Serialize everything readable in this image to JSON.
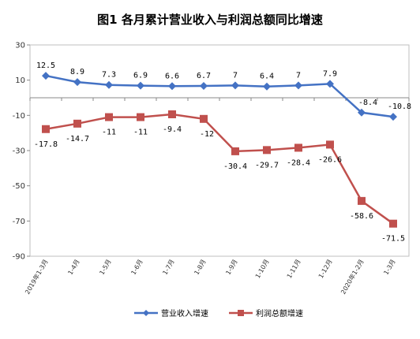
{
  "chart_data": {
    "type": "line",
    "title": "图1 各月累计营业收入与利润总额同比增速",
    "categories": [
      "2019年1-3月",
      "1-4月",
      "1-5月",
      "1-6月",
      "1-7月",
      "1-8月",
      "1-9月",
      "1-10月",
      "1-11月",
      "1-12月",
      "2020年1-2月",
      "1-3月"
    ],
    "ylim": [
      -90,
      30
    ],
    "yticks": [
      30,
      10,
      -10,
      -30,
      -50,
      -70,
      -90
    ],
    "grid": false,
    "legend_position": "bottom",
    "series": [
      {
        "name": "营业收入增速",
        "color": "#4472C4",
        "values": [
          12.5,
          8.9,
          7.3,
          6.9,
          6.6,
          6.7,
          7,
          6.4,
          7,
          7.9,
          -8.4,
          -10.8
        ],
        "labels": [
          "12.5",
          "8.9",
          "7.3",
          "6.9",
          "6.6",
          "6.7",
          "7",
          "6.4",
          "7",
          "7.9",
          "-8.4",
          "-10.8"
        ]
      },
      {
        "name": "利润总额增速",
        "color": "#C0504D",
        "values": [
          -17.8,
          -14.7,
          -11,
          -11,
          -9.4,
          -12,
          -30.4,
          -29.7,
          -28.4,
          -26.6,
          -58.6,
          -71.5
        ],
        "labels": [
          "-17.8",
          "-14.7",
          "-11",
          "-11",
          "-9.4",
          "-12",
          "-30.4",
          "-29.7",
          "-28.4",
          "-26.6",
          "-58.6",
          "-71.5"
        ]
      }
    ]
  }
}
